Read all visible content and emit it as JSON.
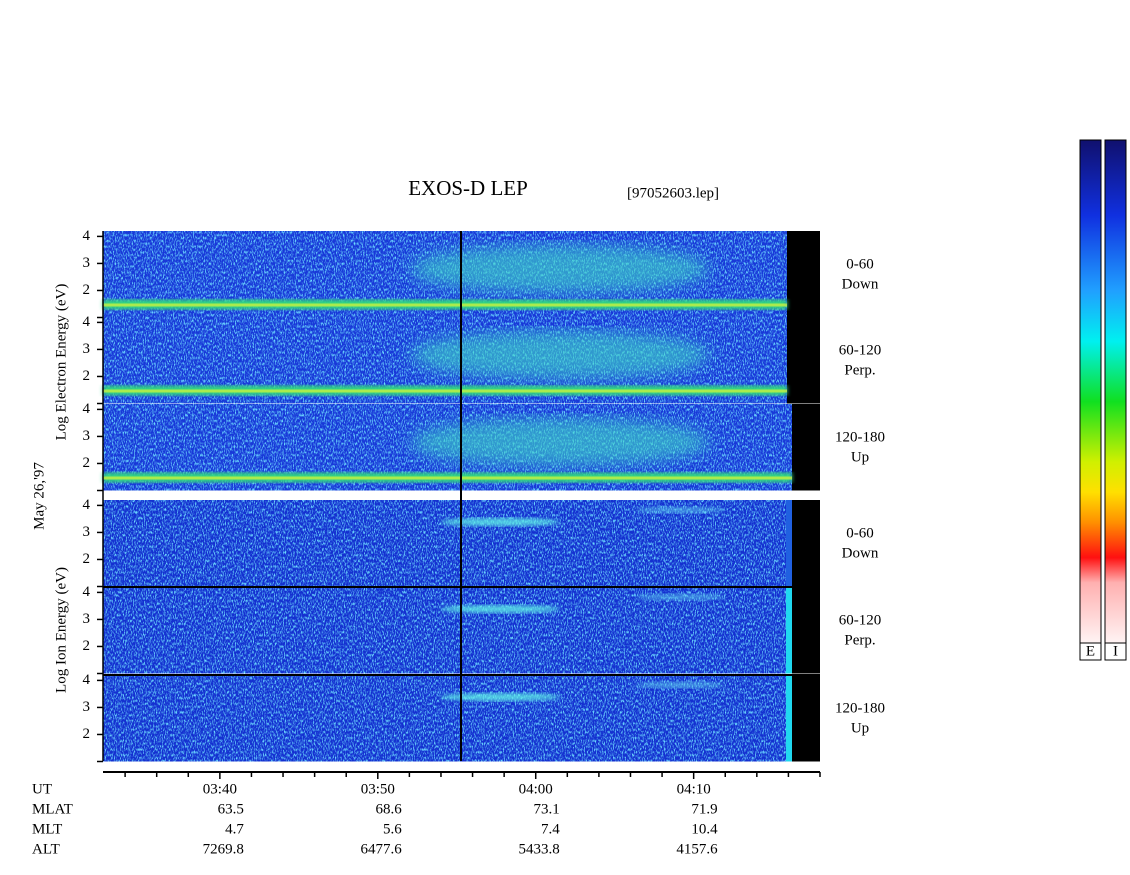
{
  "chart_data": {
    "type": "spectrogram",
    "title": "EXOS-D LEP",
    "file": "[97052603.lep]",
    "date": "May 26,'97",
    "electron_axis_label": "Log Electron Energy (eV)",
    "ion_axis_label": "Log Ion Energy (eV)",
    "ylim": [
      1,
      4.2
    ],
    "yticks": [
      2,
      3,
      4
    ],
    "panels": [
      {
        "pitch": "0-60",
        "direction": "Down"
      },
      {
        "pitch": "60-120",
        "direction": "Perp."
      },
      {
        "pitch": "120-180",
        "direction": "Up"
      },
      {
        "pitch": "0-60",
        "direction": "Down"
      },
      {
        "pitch": "60-120",
        "direction": "Perp."
      },
      {
        "pitch": "120-180",
        "direction": "Up"
      }
    ],
    "xlim": [
      212.6,
      258
    ],
    "xticks": [
      {
        "value": 220,
        "label": "03:40"
      },
      {
        "value": 230,
        "label": "03:50"
      },
      {
        "value": 240,
        "label": "04:00"
      },
      {
        "value": 250,
        "label": "04:10"
      }
    ],
    "minor_xticks": [
      214,
      216,
      218,
      222,
      224,
      226,
      228,
      232,
      234,
      236,
      238,
      242,
      244,
      246,
      248,
      252,
      254,
      256,
      258
    ],
    "time_label": "UT",
    "orbit_rows": [
      {
        "name": "MLAT",
        "values": [
          63.5,
          68.6,
          73.1,
          71.9
        ]
      },
      {
        "name": "MLT",
        "values": [
          4.7,
          5.6,
          7.4,
          10.4
        ]
      },
      {
        "name": "ALT",
        "values": [
          7269.8,
          6477.6,
          5433.8,
          4157.6
        ]
      }
    ],
    "colorbar_labels": [
      "E",
      "I"
    ]
  }
}
